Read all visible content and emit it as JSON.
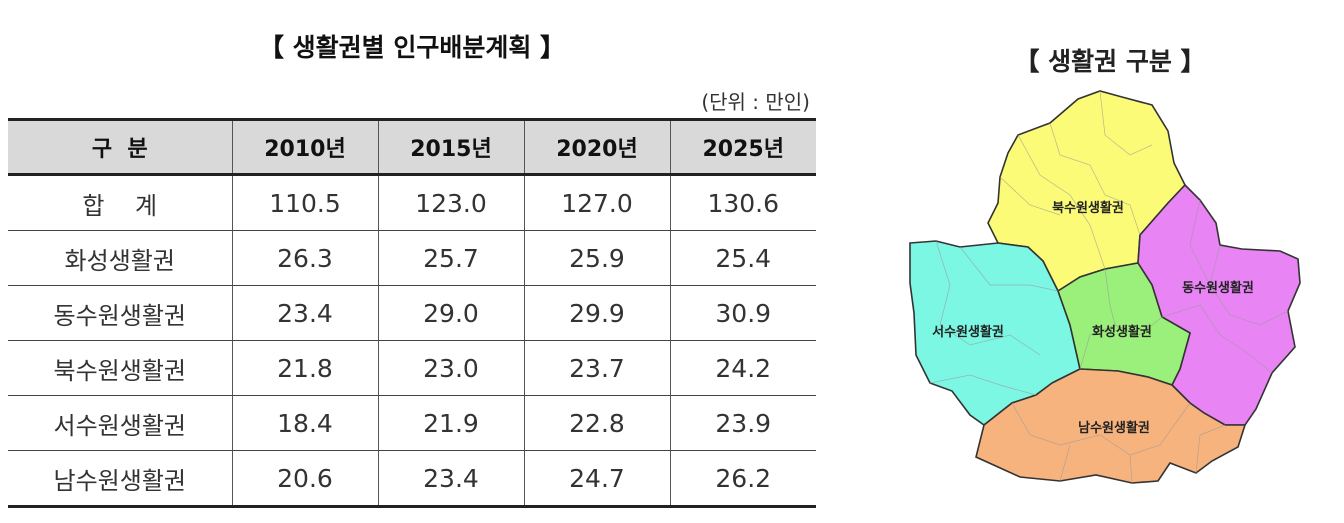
{
  "table": {
    "title": "【 생활권별 인구배분계획 】",
    "unit": "(단위 : 만인)",
    "headers": [
      "구  분",
      "2010년",
      "2015년",
      "2020년",
      "2025년"
    ],
    "rows": [
      [
        "합    계",
        "110.5",
        "123.0",
        "127.0",
        "130.6"
      ],
      [
        "화성생활권",
        "26.3",
        "25.7",
        "25.9",
        "25.4"
      ],
      [
        "동수원생활권",
        "23.4",
        "29.0",
        "29.9",
        "30.9"
      ],
      [
        "북수원생활권",
        "21.8",
        "23.0",
        "23.7",
        "24.2"
      ],
      [
        "서수원생활권",
        "18.4",
        "21.9",
        "22.8",
        "23.9"
      ],
      [
        "남수원생활권",
        "20.6",
        "23.4",
        "24.7",
        "26.2"
      ]
    ]
  },
  "map": {
    "title": "【 생활권 구분 】",
    "regions": [
      {
        "name": "북수원생활권",
        "color": "#fbfb78"
      },
      {
        "name": "동수원생활권",
        "color": "#e884f4"
      },
      {
        "name": "서수원생활권",
        "color": "#7cf7e3"
      },
      {
        "name": "화성생활권",
        "color": "#9af07a"
      },
      {
        "name": "남수원생활권",
        "color": "#f7b37e"
      }
    ]
  }
}
